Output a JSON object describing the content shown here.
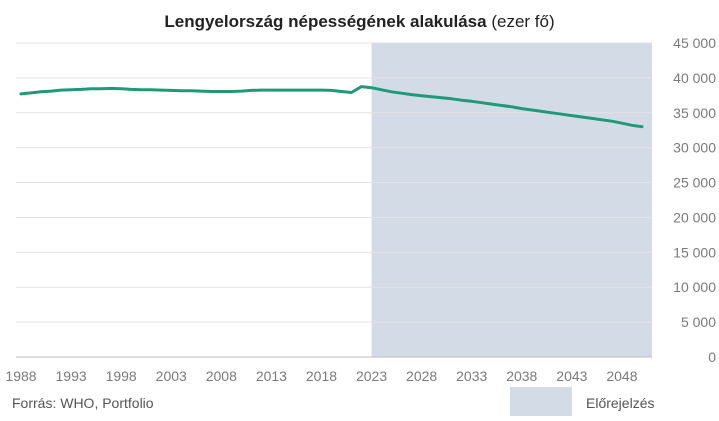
{
  "chart_data": {
    "type": "line",
    "title": "Lengyelország népességének alakulása",
    "title_unit": "(ezer fő)",
    "xlim": [
      1987.5,
      2051
    ],
    "ylim": [
      0,
      45000
    ],
    "y_ticks": [
      0,
      5000,
      10000,
      15000,
      20000,
      25000,
      30000,
      35000,
      40000,
      45000
    ],
    "y_tick_labels": [
      "0",
      "5 000",
      "10 000",
      "15 000",
      "20 000",
      "25 000",
      "30 000",
      "35 000",
      "40 000",
      "45 000"
    ],
    "x_ticks": [
      1988,
      1993,
      1998,
      2003,
      2008,
      2013,
      2018,
      2023,
      2028,
      2033,
      2038,
      2043,
      2048
    ],
    "x_tick_labels": [
      "1988",
      "1993",
      "1998",
      "2003",
      "2008",
      "2013",
      "2018",
      "2023",
      "2028",
      "2033",
      "2038",
      "2043",
      "2048"
    ],
    "grid": true,
    "forecast_region": {
      "from": 2023,
      "to": 2051,
      "label": "Előrejelzés",
      "color": "#d3dbe6"
    },
    "series": [
      {
        "color": "#1d9a78",
        "x": [
          1988,
          1989,
          1990,
          1991,
          1992,
          1993,
          1994,
          1995,
          1996,
          1997,
          1998,
          1999,
          2000,
          2001,
          2002,
          2003,
          2004,
          2005,
          2006,
          2007,
          2008,
          2009,
          2010,
          2011,
          2012,
          2013,
          2014,
          2015,
          2016,
          2017,
          2018,
          2019,
          2020,
          2021,
          2022,
          2023,
          2024,
          2025,
          2026,
          2027,
          2028,
          2029,
          2030,
          2031,
          2032,
          2033,
          2034,
          2035,
          2036,
          2037,
          2038,
          2039,
          2040,
          2041,
          2042,
          2043,
          2044,
          2045,
          2046,
          2047,
          2048,
          2049,
          2050
        ],
        "y": [
          37700,
          37850,
          38000,
          38100,
          38250,
          38300,
          38350,
          38450,
          38450,
          38500,
          38450,
          38350,
          38300,
          38300,
          38250,
          38200,
          38150,
          38150,
          38100,
          38050,
          38050,
          38050,
          38100,
          38200,
          38250,
          38250,
          38250,
          38250,
          38250,
          38250,
          38250,
          38200,
          38050,
          37900,
          38750,
          38600,
          38300,
          38000,
          37800,
          37600,
          37450,
          37300,
          37150,
          37000,
          36800,
          36650,
          36450,
          36250,
          36050,
          35850,
          35600,
          35400,
          35200,
          35000,
          34800,
          34600,
          34400,
          34200,
          34000,
          33800,
          33500,
          33200,
          33000
        ]
      }
    ]
  },
  "footer": {
    "source": "Forrás: WHO, Portfolio"
  }
}
